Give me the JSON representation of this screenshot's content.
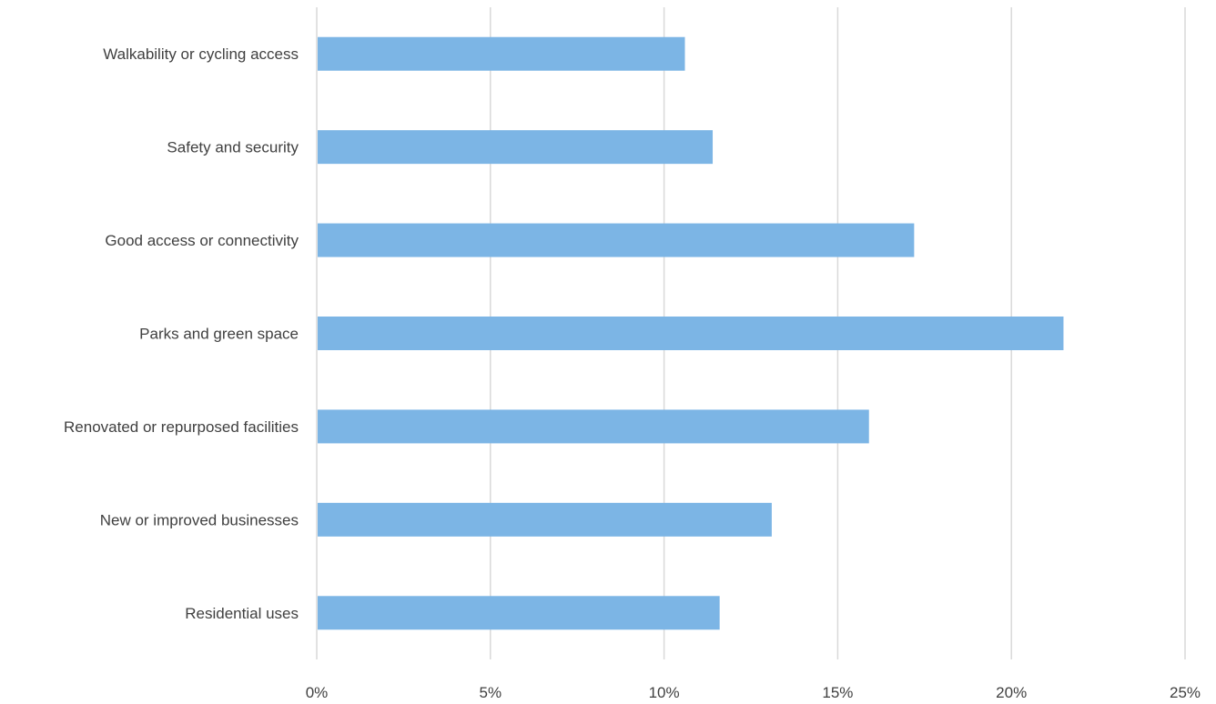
{
  "chart_data": {
    "type": "bar",
    "orientation": "horizontal",
    "title": "",
    "xlabel": "",
    "ylabel": "",
    "categories": [
      "Walkability or cycling access",
      "Safety and security",
      "Good access or connectivity",
      "Parks and green space",
      "Renovated or repurposed facilities",
      "New or improved businesses",
      "Residential uses"
    ],
    "values": [
      10.6,
      11.4,
      17.2,
      21.5,
      15.9,
      13.1,
      11.6
    ],
    "xlim": [
      0,
      25
    ],
    "x_ticks": [
      0,
      5,
      10,
      15,
      20,
      25
    ],
    "x_tick_labels": [
      "0%",
      "5%",
      "10%",
      "15%",
      "20%",
      "25%"
    ],
    "value_format": "percent",
    "grid": "vertical",
    "legend": "none",
    "bar_color": "#7cb5e5",
    "grid_color": "#d9d9d9",
    "text_color": "#404040"
  }
}
